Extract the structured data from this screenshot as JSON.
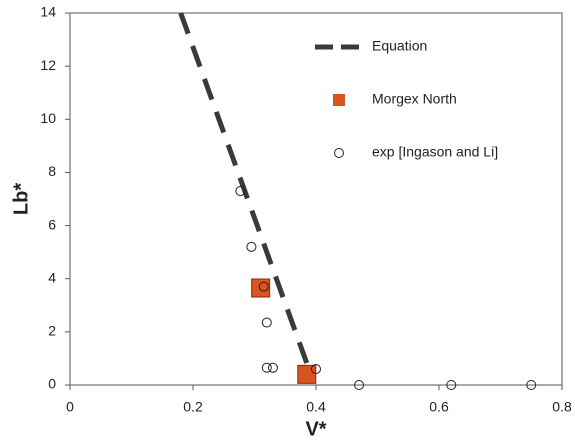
{
  "chart_data": {
    "type": "scatter",
    "x_label": "V*",
    "y_label": "Lb*",
    "xlim": [
      0,
      0.8
    ],
    "xticks": [
      0,
      0.2,
      0.4,
      0.6,
      0.8
    ],
    "ylim": [
      0,
      14
    ],
    "yticks": [
      0,
      2,
      4,
      6,
      8,
      10,
      12,
      14
    ],
    "grid": false,
    "legend": "upper right",
    "series": [
      {
        "name": "Equation",
        "style": "dashed-line",
        "color": "#3a3a3a",
        "x": [
          0.18,
          0.39
        ],
        "values": [
          14,
          0.5
        ]
      },
      {
        "name": "Morgex North",
        "style": "square",
        "color": "#d9541e",
        "x": [
          0.31,
          0.385
        ],
        "values": [
          3.65,
          0.4
        ]
      },
      {
        "name": "exp [Ingason and Li]",
        "style": "circle",
        "color": "#222222",
        "x": [
          0.277,
          0.295,
          0.315,
          0.32,
          0.32,
          0.33,
          0.4,
          0.47,
          0.62,
          0.75
        ],
        "values": [
          7.3,
          5.2,
          3.7,
          2.35,
          0.65,
          0.65,
          0.6,
          0,
          0,
          0
        ]
      }
    ]
  }
}
